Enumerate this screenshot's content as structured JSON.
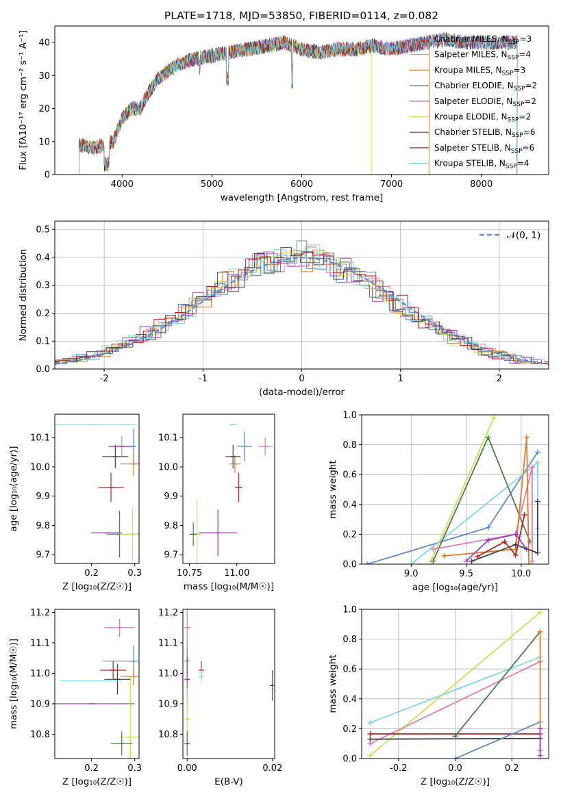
{
  "figure_title": "PLATE=1718, MJD=53850, FIBERID=0114, z=0.082",
  "colors": {
    "Chabrier MILES": "#5f87c7",
    "Salpeter MILES": "#e07ab6",
    "Kroupa MILES": "#d97c2b",
    "Chabrier ELODIE": "#4a7a4a",
    "Salpeter ELODIE": "#9b3cc0",
    "Kroupa ELODIE": "#cddc5a",
    "Chabrier STELIB": "#404040",
    "Salpeter STELIB": "#b22222",
    "Kroupa STELIB": "#7fd8e0"
  },
  "chart_data": [
    {
      "id": "spectrum",
      "type": "line",
      "title": "PLATE=1718, MJD=53850, FIBERID=0114, z=0.082",
      "xlabel": "wavelength [Angstrom, rest frame]",
      "ylabel": "Flux [fλ10⁻¹⁷ erg cm⁻² s⁻¹ A⁻¹]",
      "xlim": [
        3250,
        8750
      ],
      "ylim": [
        0,
        45
      ],
      "xticks": [
        4000,
        5000,
        6000,
        7000,
        8000
      ],
      "yticks": [
        0,
        10,
        20,
        30,
        40
      ],
      "legend_position": "upper-right",
      "approx_continuum": {
        "x": [
          3520,
          3700,
          3800,
          3900,
          4000,
          4100,
          4200,
          4300,
          4400,
          4500,
          4600,
          4800,
          5000,
          5200,
          5400,
          5600,
          5800,
          6000,
          6200,
          6400,
          6600,
          6800,
          7000,
          7200,
          7400,
          7600,
          7800,
          8000,
          8200,
          8400
        ],
        "y": [
          9,
          8,
          9,
          10,
          17,
          20,
          20,
          25,
          29,
          31,
          33,
          35,
          36,
          37,
          38,
          39,
          40,
          38,
          37,
          38,
          38,
          39,
          38,
          39,
          40,
          41,
          40,
          40,
          40,
          40
        ]
      },
      "series": [
        {
          "name": "Chabrier MILES",
          "nssp": "3"
        },
        {
          "name": "Salpeter MILES",
          "nssp": "4"
        },
        {
          "name": "Kroupa MILES",
          "nssp": "3"
        },
        {
          "name": "Chabrier ELODIE",
          "nssp": "2"
        },
        {
          "name": "Salpeter ELODIE",
          "nssp": "2"
        },
        {
          "name": "Kroupa ELODIE",
          "nssp": "2"
        },
        {
          "name": "Chabrier STELIB",
          "nssp": "6"
        },
        {
          "name": "Salpeter STELIB",
          "nssp": "6"
        },
        {
          "name": "Kroupa STELIB",
          "nssp": "4"
        }
      ]
    },
    {
      "id": "residuals",
      "type": "line",
      "xlabel": "(data-model)/error",
      "ylabel": "Normed distribution",
      "xlim": [
        -2.5,
        2.5
      ],
      "ylim": [
        0,
        0.53
      ],
      "xticks": [
        -2,
        -1,
        0,
        1,
        2
      ],
      "yticks": [
        0.0,
        0.1,
        0.2,
        0.3,
        0.4,
        0.5
      ],
      "grid": true,
      "legend_position": "upper-right",
      "legend_label": "𝒩(0, 1)",
      "series_note": "step histograms for each model; dashed curve is a unit normal"
    },
    {
      "id": "age_vs_Z",
      "type": "scatter",
      "xlabel": "Z [log₁₀(Z/Z☉)]",
      "ylabel": "age  [log₁₀(age/yr)]",
      "xlim": [
        0.115,
        0.31
      ],
      "ylim": [
        9.67,
        10.18
      ],
      "xticks": [
        0.2,
        0.3
      ],
      "yticks": [
        9.7,
        9.8,
        9.9,
        10.0,
        10.1
      ],
      "points": [
        {
          "name": "Kroupa STELIB",
          "x": 0.21,
          "xerr": 0.095,
          "y": 10.145,
          "yerr": 0.0
        },
        {
          "name": "Salpeter MILES",
          "x": 0.27,
          "xerr": 0.03,
          "y": 10.07,
          "yerr": 0.035
        },
        {
          "name": "Salpeter ELODIE",
          "x": 0.27,
          "xerr": 0.03,
          "y": 10.07,
          "yerr": 0.0
        },
        {
          "name": "Chabrier MILES",
          "x": 0.297,
          "xerr": 0.0,
          "y": 10.07,
          "yerr": 0.06
        },
        {
          "name": "Chabrier STELIB",
          "x": 0.255,
          "xerr": 0.03,
          "y": 10.035,
          "yerr": 0.04
        },
        {
          "name": "Kroupa MILES",
          "x": 0.297,
          "xerr": 0.03,
          "y": 10.01,
          "yerr": 0.04
        },
        {
          "name": "Salpeter STELIB",
          "x": 0.245,
          "xerr": 0.03,
          "y": 9.93,
          "yerr": 0.05
        },
        {
          "name": "Chabrier ELODIE",
          "x": 0.265,
          "xerr": 0.03,
          "y": 9.77,
          "yerr": 0.08
        },
        {
          "name": "Salpeter ELODIE",
          "x": 0.235,
          "xerr": 0.035,
          "y": 9.775,
          "yerr": 0.0
        },
        {
          "name": "Kroupa ELODIE",
          "x": 0.295,
          "xerr": 0.03,
          "y": 9.77,
          "yerr": 0.09
        }
      ]
    },
    {
      "id": "age_vs_mass",
      "type": "scatter",
      "xlabel": "mass [log₁₀(M/M☉)]",
      "ylabel": "",
      "xlim": [
        10.715,
        11.2
      ],
      "ylim": [
        9.67,
        10.18
      ],
      "xticks": [
        10.75,
        11.0
      ],
      "yticks": [
        9.7,
        9.8,
        9.9,
        10.0,
        10.1
      ],
      "points": [
        {
          "name": "Kroupa STELIB",
          "x": 10.98,
          "xerr": 0.02,
          "y": 10.145,
          "yerr": 0.0
        },
        {
          "name": "Chabrier MILES",
          "x": 11.04,
          "xerr": 0.04,
          "y": 10.07,
          "yerr": 0.05
        },
        {
          "name": "Salpeter MILES",
          "x": 11.15,
          "xerr": 0.04,
          "y": 10.07,
          "yerr": 0.03
        },
        {
          "name": "Chabrier STELIB",
          "x": 10.98,
          "xerr": 0.04,
          "y": 10.035,
          "yerr": 0.04
        },
        {
          "name": "Kroupa MILES",
          "x": 10.99,
          "xerr": 0.03,
          "y": 10.01,
          "yerr": 0.03
        },
        {
          "name": "Salpeter STELIB",
          "x": 11.01,
          "xerr": 0.02,
          "y": 9.93,
          "yerr": 0.05
        },
        {
          "name": "Salpeter ELODIE",
          "x": 10.9,
          "xerr": 0.1,
          "y": 9.775,
          "yerr": 0.08
        },
        {
          "name": "Kroupa ELODIE",
          "x": 10.79,
          "xerr": 0.02,
          "y": 9.77,
          "yerr": 0.12
        },
        {
          "name": "Chabrier ELODIE",
          "x": 10.77,
          "xerr": 0.02,
          "y": 9.77,
          "yerr": 0.04
        }
      ]
    },
    {
      "id": "weight_vs_age",
      "type": "line",
      "xlabel": "age  [log₁₀(age/yr)]",
      "ylabel": "mass weight",
      "xlim": [
        8.55,
        10.25
      ],
      "ylim": [
        0,
        1.0
      ],
      "xticks": [
        9.0,
        9.5,
        10.0
      ],
      "yticks": [
        0.0,
        0.2,
        0.4,
        0.6,
        0.8,
        1.0
      ],
      "grid": true,
      "series": [
        {
          "name": "Chabrier MILES",
          "x": [
            8.6,
            9.7,
            10.15
          ],
          "y": [
            0.0,
            0.245,
            0.75
          ]
        },
        {
          "name": "Kroupa STELIB",
          "x": [
            9.0,
            10.15,
            10.15
          ],
          "y": [
            0.0,
            0.68,
            0.24
          ]
        },
        {
          "name": "Kroupa ELODIE",
          "x": [
            9.18,
            9.75
          ],
          "y": [
            0.02,
            0.98
          ]
        },
        {
          "name": "Chabrier ELODIE",
          "x": [
            9.2,
            9.7,
            10.08
          ],
          "y": [
            0.02,
            0.85,
            0.15
          ]
        },
        {
          "name": "Salpeter MILES",
          "x": [
            9.2,
            9.95,
            10.1,
            10.1
          ],
          "y": [
            0.1,
            0.2,
            0.65,
            0.02
          ]
        },
        {
          "name": "Kroupa MILES",
          "x": [
            9.3,
            9.95,
            10.05,
            10.07
          ],
          "y": [
            0.055,
            0.1,
            0.85,
            0.0
          ]
        },
        {
          "name": "Salpeter ELODIE",
          "x": [
            9.5,
            9.7,
            9.95,
            10.05
          ],
          "y": [
            0.02,
            0.16,
            0.2,
            0.1
          ]
        },
        {
          "name": "Chabrier STELIB",
          "x": [
            9.55,
            9.95,
            10.15,
            10.15
          ],
          "y": [
            0.02,
            0.13,
            0.075,
            0.42
          ]
        },
        {
          "name": "Salpeter STELIB",
          "x": [
            9.6,
            9.85,
            9.95,
            10.03
          ],
          "y": [
            0.05,
            0.15,
            0.06,
            0.33
          ]
        }
      ]
    },
    {
      "id": "mass_vs_Z",
      "type": "scatter",
      "xlabel": "Z [log₁₀(Z/Z☉)]",
      "ylabel": "mass [log₁₀(M/M☉)]",
      "xlim": [
        0.115,
        0.31
      ],
      "ylim": [
        10.72,
        11.21
      ],
      "xticks": [
        0.2,
        0.3
      ],
      "yticks": [
        10.8,
        10.9,
        11.0,
        11.1,
        11.2
      ],
      "points": [
        {
          "name": "Salpeter MILES",
          "x": 0.265,
          "xerr": 0.035,
          "y": 11.15,
          "yerr": 0.03
        },
        {
          "name": "Chabrier MILES",
          "x": 0.297,
          "xerr": 0.07,
          "y": 11.04,
          "yerr": 0.05
        },
        {
          "name": "Salpeter STELIB",
          "x": 0.25,
          "xerr": 0.03,
          "y": 11.01,
          "yerr": 0.03
        },
        {
          "name": "Kroupa MILES",
          "x": 0.297,
          "xerr": 0.03,
          "y": 10.99,
          "yerr": 0.03
        },
        {
          "name": "Chabrier STELIB",
          "x": 0.26,
          "xerr": 0.03,
          "y": 10.98,
          "yerr": 0.05
        },
        {
          "name": "Kroupa STELIB",
          "x": 0.2,
          "xerr": 0.07,
          "y": 10.975,
          "yerr": 0.0
        },
        {
          "name": "Salpeter ELODIE",
          "x": 0.2,
          "xerr": 0.1,
          "y": 10.9,
          "yerr": 0.0
        },
        {
          "name": "Kroupa ELODIE",
          "x": 0.29,
          "xerr": 0.025,
          "y": 10.79,
          "yerr": 0.2
        },
        {
          "name": "Chabrier ELODIE",
          "x": 0.27,
          "xerr": 0.025,
          "y": 10.77,
          "yerr": 0.04
        }
      ]
    },
    {
      "id": "mass_vs_ebv",
      "type": "scatter",
      "xlabel": "E(B-V)",
      "ylabel": "",
      "xlim": [
        -0.001,
        0.0205
      ],
      "ylim": [
        10.72,
        11.21
      ],
      "xticks": [
        0.0,
        0.02
      ],
      "yticks": [
        10.8,
        10.9,
        11.0,
        11.1,
        11.2
      ],
      "points": [
        {
          "name": "Salpeter MILES",
          "x": 0.0,
          "y": 11.15,
          "yerr": 0.06
        },
        {
          "name": "Chabrier MILES",
          "x": 0.0,
          "y": 11.04,
          "yerr": 0.05
        },
        {
          "name": "Salpeter STELIB",
          "x": 0.0033,
          "y": 11.01,
          "yerr": 0.03
        },
        {
          "name": "Kroupa STELIB",
          "x": 0.0033,
          "y": 10.99,
          "yerr": 0.02
        },
        {
          "name": "Salpeter ELODIE",
          "x": 0.0,
          "y": 10.98,
          "yerr": 0.08
        },
        {
          "name": "Kroupa ELODIE",
          "x": 0.0,
          "y": 10.85,
          "yerr": 0.1
        },
        {
          "name": "Chabrier ELODIE",
          "x": 0.0,
          "y": 10.77,
          "yerr": 0.04
        },
        {
          "name": "Chabrier STELIB",
          "x": 0.02,
          "y": 10.96,
          "yerr": 0.05
        }
      ]
    },
    {
      "id": "weight_vs_Z",
      "type": "line",
      "xlabel": "Z [log₁₀(Z/Z☉)]",
      "ylabel": "mass weight",
      "xlim": [
        -0.33,
        0.33
      ],
      "ylim": [
        0,
        1.0
      ],
      "xticks": [
        -0.2,
        0.0,
        0.2
      ],
      "yticks": [
        0.0,
        0.2,
        0.4,
        0.6,
        0.8,
        1.0
      ],
      "grid": true,
      "series": [
        {
          "name": "Kroupa ELODIE",
          "x": [
            -0.3,
            0.3
          ],
          "y": [
            0.02,
            0.98
          ]
        },
        {
          "name": "Kroupa STELIB",
          "x": [
            -0.3,
            0.3
          ],
          "y": [
            0.24,
            0.68
          ]
        },
        {
          "name": "Salpeter MILES",
          "x": [
            -0.3,
            0.3
          ],
          "y": [
            0.1,
            0.65
          ]
        },
        {
          "name": "Salpeter STELIB",
          "x": [
            -0.3,
            0.3
          ],
          "y": [
            0.165,
            0.165
          ]
        },
        {
          "name": "Chabrier STELIB",
          "x": [
            -0.3,
            0.3
          ],
          "y": [
            0.13,
            0.135
          ]
        },
        {
          "name": "Chabrier ELODIE",
          "x": [
            0.0,
            0.3
          ],
          "y": [
            0.15,
            0.85
          ]
        },
        {
          "name": "Chabrier MILES",
          "x": [
            0.0,
            0.3
          ],
          "y": [
            0.0,
            0.245
          ]
        },
        {
          "name": "Kroupa MILES",
          "x": [
            0.3,
            0.3
          ],
          "y": [
            0.055,
            0.85
          ]
        },
        {
          "name": "Salpeter ELODIE",
          "x": [
            0.3,
            0.3
          ],
          "y": [
            0.02,
            0.2
          ]
        }
      ]
    }
  ]
}
